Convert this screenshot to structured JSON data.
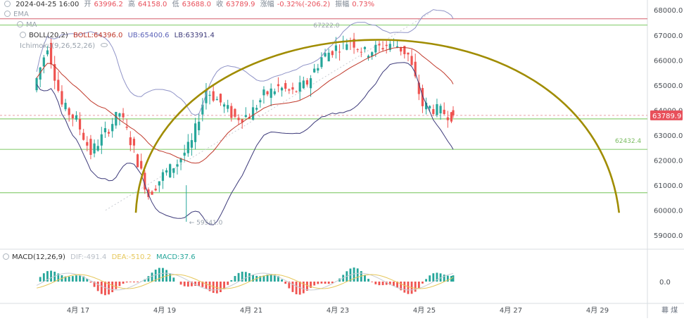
{
  "header": {
    "datetime": "2024-04-25 16:00",
    "open_label": "开",
    "open_value": "63996.2",
    "high_label": "高",
    "high_value": "64158.0",
    "low_label": "低",
    "low_value": "63688.0",
    "close_label": "收",
    "close_value": "63789.9",
    "change_label": "涨幅",
    "change_value": "-0.32%(-206.2)",
    "amplitude_label": "振幅",
    "amplitude_value": "0.73%"
  },
  "indicators": {
    "ema_label": "EMA",
    "ma_label": "MA",
    "boll_label": "BOLL(20,2)",
    "boll_mid": "BOLL:64396.0",
    "boll_ub": "UB:65400.6",
    "boll_lb": "LB:63391.4",
    "ichimoku_label": "Ichimoku(9,26,52,26)"
  },
  "macd_header": {
    "label": "MACD(12,26,9)",
    "dif": "DIF:-491.4",
    "dea": "DEA:-510.2",
    "macd": "MACD:37.6"
  },
  "price_axis": {
    "ticks": [
      "68000.0",
      "67000.0",
      "66000.0",
      "65000.0",
      "64000.0",
      "63000.0",
      "62000.0",
      "61000.0",
      "60000.0",
      "59000.0"
    ],
    "current_price": "63789.9",
    "level_label": "62432.4"
  },
  "macd_axis": {
    "ticks": [
      "0.0"
    ]
  },
  "annotations": {
    "high_marker": "67222.0",
    "low_marker": "← 59541.0"
  },
  "time_axis": {
    "ticks": [
      "4月 17",
      "4月 19",
      "4月 21",
      "4月 23",
      "4月 25",
      "4月 27",
      "4月 29"
    ],
    "corner_icons": "幕 煤"
  },
  "colors": {
    "up": "#26a69a",
    "down": "#ef5350",
    "arc": "#a08c00",
    "hline_green": "#8dcf76",
    "hline_red": "#d9717b",
    "boll_band": "#3d3a7a",
    "boll_mid": "#c0392b",
    "current_price_tag": "#e8505b"
  },
  "chart_data": [
    {
      "type": "candlestick",
      "symbol_interval": "4h",
      "x_range": [
        "4月 15",
        "4月 30"
      ],
      "ylim": [
        58500,
        68400
      ],
      "close_series": [
        {
          "x": "4月 16 00:00",
          "close": 64800
        },
        {
          "x": "4月 16 08:00",
          "close": 66600
        },
        {
          "x": "4月 16 16:00",
          "close": 64200
        },
        {
          "x": "4月 17 00:00",
          "close": 63600
        },
        {
          "x": "4月 17 08:00",
          "close": 62300
        },
        {
          "x": "4月 17 16:00",
          "close": 63100
        },
        {
          "x": "4月 18 00:00",
          "close": 63900
        },
        {
          "x": "4月 18 08:00",
          "close": 62400
        },
        {
          "x": "4月 18 16:00",
          "close": 60600
        },
        {
          "x": "4月 19 00:00",
          "close": 61400
        },
        {
          "x": "4月 19 08:00",
          "close": 61900
        },
        {
          "x": "4月 19 16:00",
          "close": 62700
        },
        {
          "x": "4月 20 00:00",
          "close": 64800
        },
        {
          "x": "4月 20 08:00",
          "close": 64300
        },
        {
          "x": "4月 20 16:00",
          "close": 63700
        },
        {
          "x": "4月 21 00:00",
          "close": 63800
        },
        {
          "x": "4月 21 08:00",
          "close": 64600
        },
        {
          "x": "4月 21 16:00",
          "close": 64900
        },
        {
          "x": "4月 22 00:00",
          "close": 64700
        },
        {
          "x": "4月 22 08:00",
          "close": 65100
        },
        {
          "x": "4月 22 16:00",
          "close": 66100
        },
        {
          "x": "4month 23 00:00",
          "close": 66500
        },
        {
          "x": "4月 23 08:00",
          "close": 66800
        },
        {
          "x": "4月 23 16:00",
          "close": 66300
        },
        {
          "x": "4月 24 00:00",
          "close": 66500
        },
        {
          "x": "4月 24 08:00",
          "close": 66700
        },
        {
          "x": "4月 24 16:00",
          "close": 66200
        },
        {
          "x": "4月 25 00:00",
          "close": 64200
        },
        {
          "x": "4月 25 08:00",
          "close": 64000
        },
        {
          "x": "4月 25 16:00",
          "close": 63790
        }
      ],
      "last_candle": {
        "open": 63996.2,
        "high": 64158.0,
        "low": 63688.0,
        "close": 63789.9
      },
      "bollinger": {
        "period": 20,
        "mult": 2,
        "mid": 64396.0,
        "upper": 65400.6,
        "lower": 63391.4
      },
      "horizontal_levels": [
        {
          "price": 67650,
          "color": "red"
        },
        {
          "price": 67400,
          "color": "green"
        },
        {
          "price": 63650,
          "color": "green"
        },
        {
          "price": 62432.4,
          "color": "green"
        },
        {
          "price": 60700,
          "color": "green"
        }
      ],
      "arc": {
        "start": {
          "x": "4月 18 08:00",
          "price": 59900
        },
        "peak": {
          "x": "4月 23 16:00",
          "price": 67000
        },
        "end": {
          "x": "4月 29 12:00",
          "price": 59900
        }
      },
      "high_marker": {
        "x": "4月 23",
        "price": 67222.0
      },
      "low_marker": {
        "x": "4月 19",
        "price": 59541.0
      }
    },
    {
      "type": "bar",
      "name": "MACD(12,26,9)",
      "dif": -491.4,
      "dea": -510.2,
      "macd": 37.6
    }
  ]
}
